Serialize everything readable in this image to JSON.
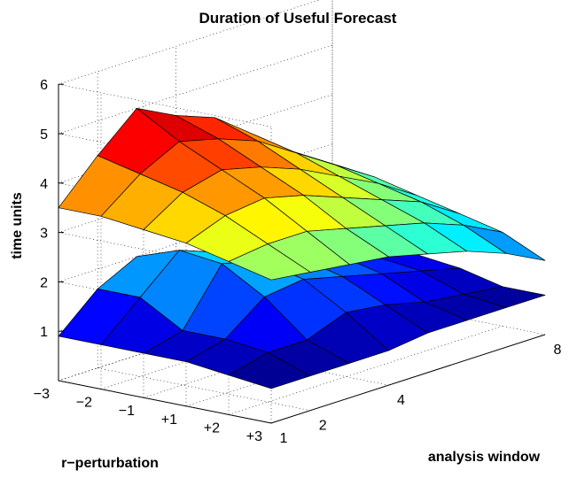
{
  "chart_data": {
    "type": "surface",
    "title": "Duration of Useful Forecast",
    "xlabel": "analysis window",
    "ylabel": "r−perturbation",
    "zlabel": "time units",
    "x": [
      1,
      2,
      3,
      4,
      5,
      6,
      7,
      8
    ],
    "y_ticks": [
      "−3",
      "−2",
      "−1",
      "+1",
      "+2",
      "+3"
    ],
    "x_ticks": [
      "1",
      "2",
      "4",
      "8"
    ],
    "z_ticks": [
      "1",
      "2",
      "3",
      "4",
      "5",
      "6"
    ],
    "zlim": [
      0,
      6
    ],
    "grid": true,
    "colormap": "jet",
    "series": [
      {
        "values": [
          [
            3.5,
            4.3,
            5.0,
            4.6,
            4.3,
            3.7,
            3.1,
            2.6
          ],
          [
            3.5,
            4.1,
            4.5,
            4.3,
            4.0,
            3.5,
            3.0,
            2.5
          ],
          [
            3.4,
            3.9,
            4.1,
            3.9,
            3.6,
            3.2,
            2.8,
            2.3
          ],
          [
            3.3,
            3.6,
            3.7,
            3.5,
            3.2,
            2.9,
            2.6,
            2.1
          ],
          [
            3.1,
            3.2,
            3.2,
            3.0,
            2.8,
            2.6,
            2.3,
            1.9
          ],
          [
            2.9,
            2.8,
            2.7,
            2.6,
            2.4,
            2.2,
            1.9,
            1.5
          ]
        ]
      },
      {
        "values": [
          [
            0.9,
            1.6,
            2.0,
            1.8,
            1.5,
            1.3,
            1.1,
            0.9
          ],
          [
            0.9,
            1.6,
            2.3,
            2.0,
            1.7,
            1.4,
            1.2,
            1.0
          ],
          [
            0.9,
            1.1,
            2.2,
            2.0,
            1.8,
            1.6,
            1.3,
            1.1
          ],
          [
            0.9,
            1.1,
            1.7,
            1.8,
            1.6,
            1.4,
            1.2,
            1.0
          ],
          [
            0.8,
            1.0,
            1.0,
            1.3,
            1.2,
            1.0,
            0.9,
            0.8
          ],
          [
            0.7,
            0.7,
            0.7,
            0.7,
            0.8,
            0.8,
            0.8,
            0.8
          ]
        ]
      }
    ]
  }
}
